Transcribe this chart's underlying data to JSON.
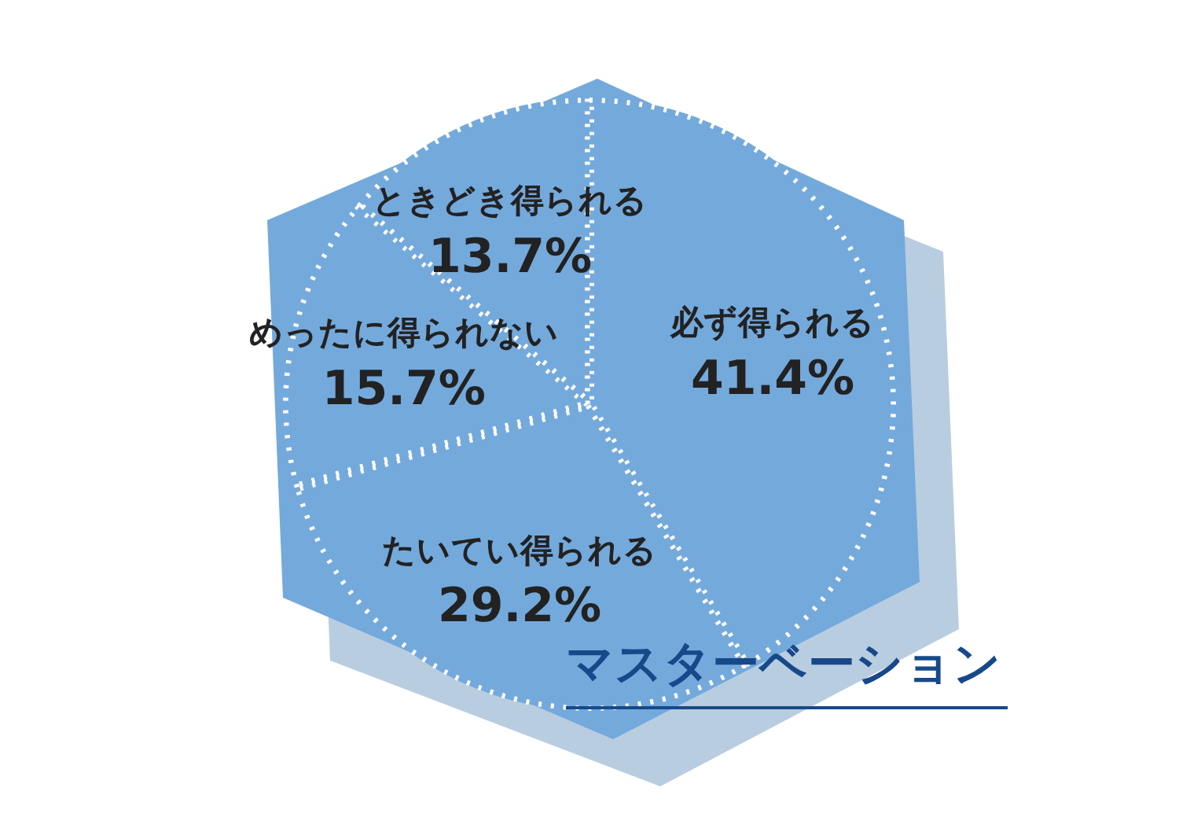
{
  "chart_data": {
    "type": "pie",
    "title": "マスターベーション",
    "categories": [
      "必ず得られる",
      "たいてい得られる",
      "めったに得られない",
      "ときどき得られる"
    ],
    "values": [
      41.4,
      29.2,
      15.7,
      13.7
    ],
    "colors": [
      "#74a9dc",
      "#74a9dc",
      "#74a9dc",
      "#74a9dc"
    ],
    "value_labels": [
      "41.4%",
      "29.2%",
      "15.7%",
      "13.7%"
    ],
    "legend": false
  }
}
